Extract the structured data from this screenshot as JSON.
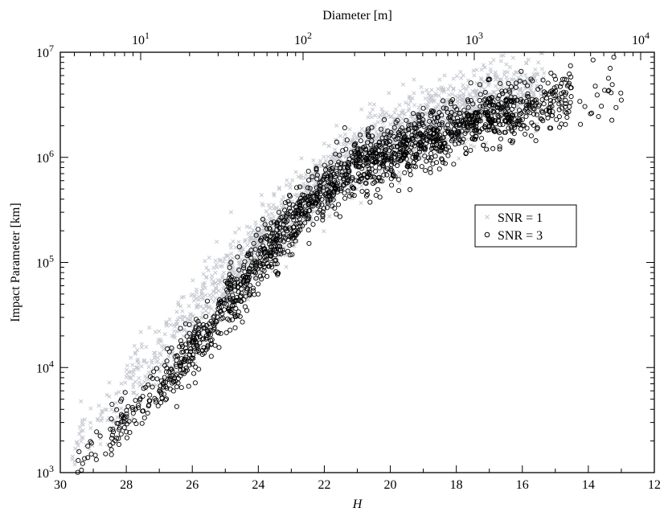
{
  "chart_data": {
    "type": "scatter",
    "xlabel": "H",
    "ylabel": "Impact Parameter [km]",
    "top_xlabel": "Diameter [m]",
    "x_axis": {
      "range": [
        30,
        12
      ],
      "reversed": true,
      "ticks": [
        30,
        28,
        26,
        24,
        22,
        20,
        18,
        16,
        14,
        12
      ],
      "tick_labels": [
        "30",
        "28",
        "26",
        "24",
        "22",
        "20",
        "18",
        "16",
        "14",
        "12"
      ]
    },
    "y_axis": {
      "range": [
        1000,
        10000000
      ],
      "scale": "log",
      "ticks": [
        1000,
        10000,
        100000,
        1000000,
        10000000
      ],
      "tick_labels": [
        "10³",
        "10⁴",
        "10⁵",
        "10⁶",
        "10⁷"
      ]
    },
    "top_axis": {
      "scale": "log",
      "quantity": "Diameter [m]",
      "ticks": [
        10,
        100,
        1000,
        10000
      ],
      "tick_labels": [
        "10¹",
        "10²",
        "10³",
        "10⁴"
      ]
    },
    "grid": false,
    "legend_position": "center-right",
    "series": [
      {
        "name": "SNR = 1",
        "marker": "x",
        "color": "#c4c8cf",
        "trend": [
          [
            29.7,
            1500
          ],
          [
            29.0,
            2700
          ],
          [
            28.0,
            6000
          ],
          [
            27.0,
            13000
          ],
          [
            26.0,
            30000
          ],
          [
            25.0,
            70000
          ],
          [
            24.0,
            155000
          ],
          [
            23.0,
            320000
          ],
          [
            22.0,
            620000
          ],
          [
            21.0,
            1050000
          ],
          [
            20.0,
            1600000
          ],
          [
            19.0,
            2200000
          ],
          [
            18.0,
            2900000
          ],
          [
            17.0,
            3600000
          ],
          [
            16.0,
            4200000
          ],
          [
            15.3,
            4800000
          ]
        ],
        "spread_dex": 0.16,
        "count": 1700
      },
      {
        "name": "SNR = 3",
        "marker": "o",
        "color": "#000000",
        "trend": [
          [
            29.5,
            1100
          ],
          [
            29.0,
            1500
          ],
          [
            28.5,
            2300
          ],
          [
            28.0,
            3300
          ],
          [
            27.5,
            4300
          ],
          [
            27.0,
            5800
          ],
          [
            26.5,
            9000
          ],
          [
            26.0,
            14000
          ],
          [
            25.5,
            21000
          ],
          [
            25.0,
            38000
          ],
          [
            24.5,
            62000
          ],
          [
            24.0,
            100000
          ],
          [
            23.5,
            155000
          ],
          [
            23.0,
            235000
          ],
          [
            22.5,
            340000
          ],
          [
            22.0,
            480000
          ],
          [
            21.5,
            620000
          ],
          [
            21.0,
            800000
          ],
          [
            20.5,
            960000
          ],
          [
            20.0,
            1100000
          ],
          [
            19.5,
            1250000
          ],
          [
            19.0,
            1450000
          ],
          [
            18.5,
            1650000
          ],
          [
            18.0,
            1900000
          ],
          [
            17.5,
            2150000
          ],
          [
            17.0,
            2400000
          ],
          [
            16.5,
            2650000
          ],
          [
            16.0,
            2900000
          ],
          [
            15.5,
            3200000
          ],
          [
            15.0,
            3500000
          ],
          [
            14.5,
            3800000
          ],
          [
            14.0,
            4100000
          ],
          [
            13.5,
            4400000
          ],
          [
            13.0,
            4700000
          ]
        ],
        "spread_dex": 0.14,
        "count": 1800
      }
    ]
  }
}
